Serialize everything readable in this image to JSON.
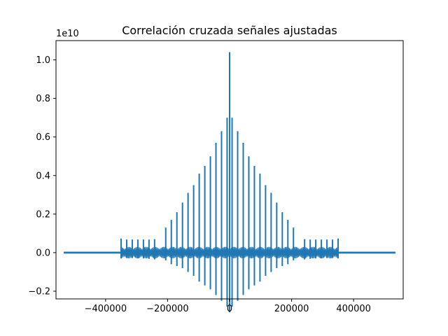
{
  "chart_data": {
    "type": "line",
    "title": "Correlación cruzada señales ajustadas",
    "xlabel": "",
    "ylabel": "",
    "y_offset_text": "1e10",
    "xlim": [
      -560000,
      560000
    ],
    "ylim": [
      -0.24,
      1.1
    ],
    "y_scale_factor": 10000000000,
    "grid": false,
    "legend": "none",
    "line_color": "#1f77b4",
    "x_ticks": [
      {
        "value": -400000,
        "label": "−400000"
      },
      {
        "value": -200000,
        "label": "−200000"
      },
      {
        "value": 0,
        "label": "0"
      },
      {
        "value": 200000,
        "label": "200000"
      },
      {
        "value": 400000,
        "label": "400000"
      }
    ],
    "y_ticks": [
      {
        "value": -0.2,
        "label": "−0.2"
      },
      {
        "value": 0.0,
        "label": "0.0"
      },
      {
        "value": 0.2,
        "label": "0.2"
      },
      {
        "value": 0.4,
        "label": "0.4"
      },
      {
        "value": 0.6,
        "label": "0.6"
      },
      {
        "value": 0.8,
        "label": "0.8"
      },
      {
        "value": 1.0,
        "label": "1.0"
      }
    ],
    "baseline": {
      "x_range": [
        -535000,
        535000
      ],
      "y_range": [
        -0.005,
        0.005
      ]
    },
    "series": [
      {
        "name": "",
        "spikes": [
          {
            "x": -350000,
            "ymax": 0.073,
            "ymin": -0.03
          },
          {
            "x": -332000,
            "ymax": 0.068,
            "ymin": -0.028
          },
          {
            "x": -314000,
            "ymax": 0.068,
            "ymin": -0.028
          },
          {
            "x": -296000,
            "ymax": 0.068,
            "ymin": -0.03
          },
          {
            "x": -278000,
            "ymax": 0.068,
            "ymin": -0.03
          },
          {
            "x": -260000,
            "ymax": 0.068,
            "ymin": -0.032
          },
          {
            "x": -242000,
            "ymax": 0.07,
            "ymin": -0.035
          },
          {
            "x": -206000,
            "ymax": 0.13,
            "ymin": -0.04
          },
          {
            "x": -188000,
            "ymax": 0.17,
            "ymin": -0.06
          },
          {
            "x": -170000,
            "ymax": 0.21,
            "ymin": -0.07
          },
          {
            "x": -152000,
            "ymax": 0.26,
            "ymin": -0.08
          },
          {
            "x": -134000,
            "ymax": 0.31,
            "ymin": -0.1
          },
          {
            "x": -116000,
            "ymax": 0.35,
            "ymin": -0.12
          },
          {
            "x": -98000,
            "ymax": 0.41,
            "ymin": -0.15
          },
          {
            "x": -80000,
            "ymax": 0.45,
            "ymin": -0.17
          },
          {
            "x": -62000,
            "ymax": 0.5,
            "ymin": -0.19
          },
          {
            "x": -44000,
            "ymax": 0.57,
            "ymin": -0.22
          },
          {
            "x": -26000,
            "ymax": 0.63,
            "ymin": -0.25
          },
          {
            "x": -8000,
            "ymax": 0.7,
            "ymin": -0.28
          },
          {
            "x": 0,
            "ymax": 1.04,
            "ymin": -0.31
          },
          {
            "x": 8000,
            "ymax": 0.7,
            "ymin": -0.28
          },
          {
            "x": 26000,
            "ymax": 0.63,
            "ymin": -0.25
          },
          {
            "x": 44000,
            "ymax": 0.57,
            "ymin": -0.22
          },
          {
            "x": 62000,
            "ymax": 0.5,
            "ymin": -0.19
          },
          {
            "x": 80000,
            "ymax": 0.45,
            "ymin": -0.17
          },
          {
            "x": 98000,
            "ymax": 0.41,
            "ymin": -0.15
          },
          {
            "x": 116000,
            "ymax": 0.35,
            "ymin": -0.12
          },
          {
            "x": 134000,
            "ymax": 0.31,
            "ymin": -0.1
          },
          {
            "x": 152000,
            "ymax": 0.26,
            "ymin": -0.08
          },
          {
            "x": 170000,
            "ymax": 0.21,
            "ymin": -0.07
          },
          {
            "x": 188000,
            "ymax": 0.17,
            "ymin": -0.06
          },
          {
            "x": 206000,
            "ymax": 0.13,
            "ymin": -0.04
          },
          {
            "x": 242000,
            "ymax": 0.07,
            "ymin": -0.035
          },
          {
            "x": 260000,
            "ymax": 0.068,
            "ymin": -0.032
          },
          {
            "x": 278000,
            "ymax": 0.068,
            "ymin": -0.03
          },
          {
            "x": 296000,
            "ymax": 0.068,
            "ymin": -0.03
          },
          {
            "x": 314000,
            "ymax": 0.068,
            "ymin": -0.028
          },
          {
            "x": 332000,
            "ymax": 0.068,
            "ymin": -0.028
          },
          {
            "x": 350000,
            "ymax": 0.073,
            "ymin": -0.03
          }
        ],
        "background_oscillation": {
          "x_range": [
            -350000,
            350000
          ],
          "amplitude": 0.03
        }
      }
    ]
  }
}
